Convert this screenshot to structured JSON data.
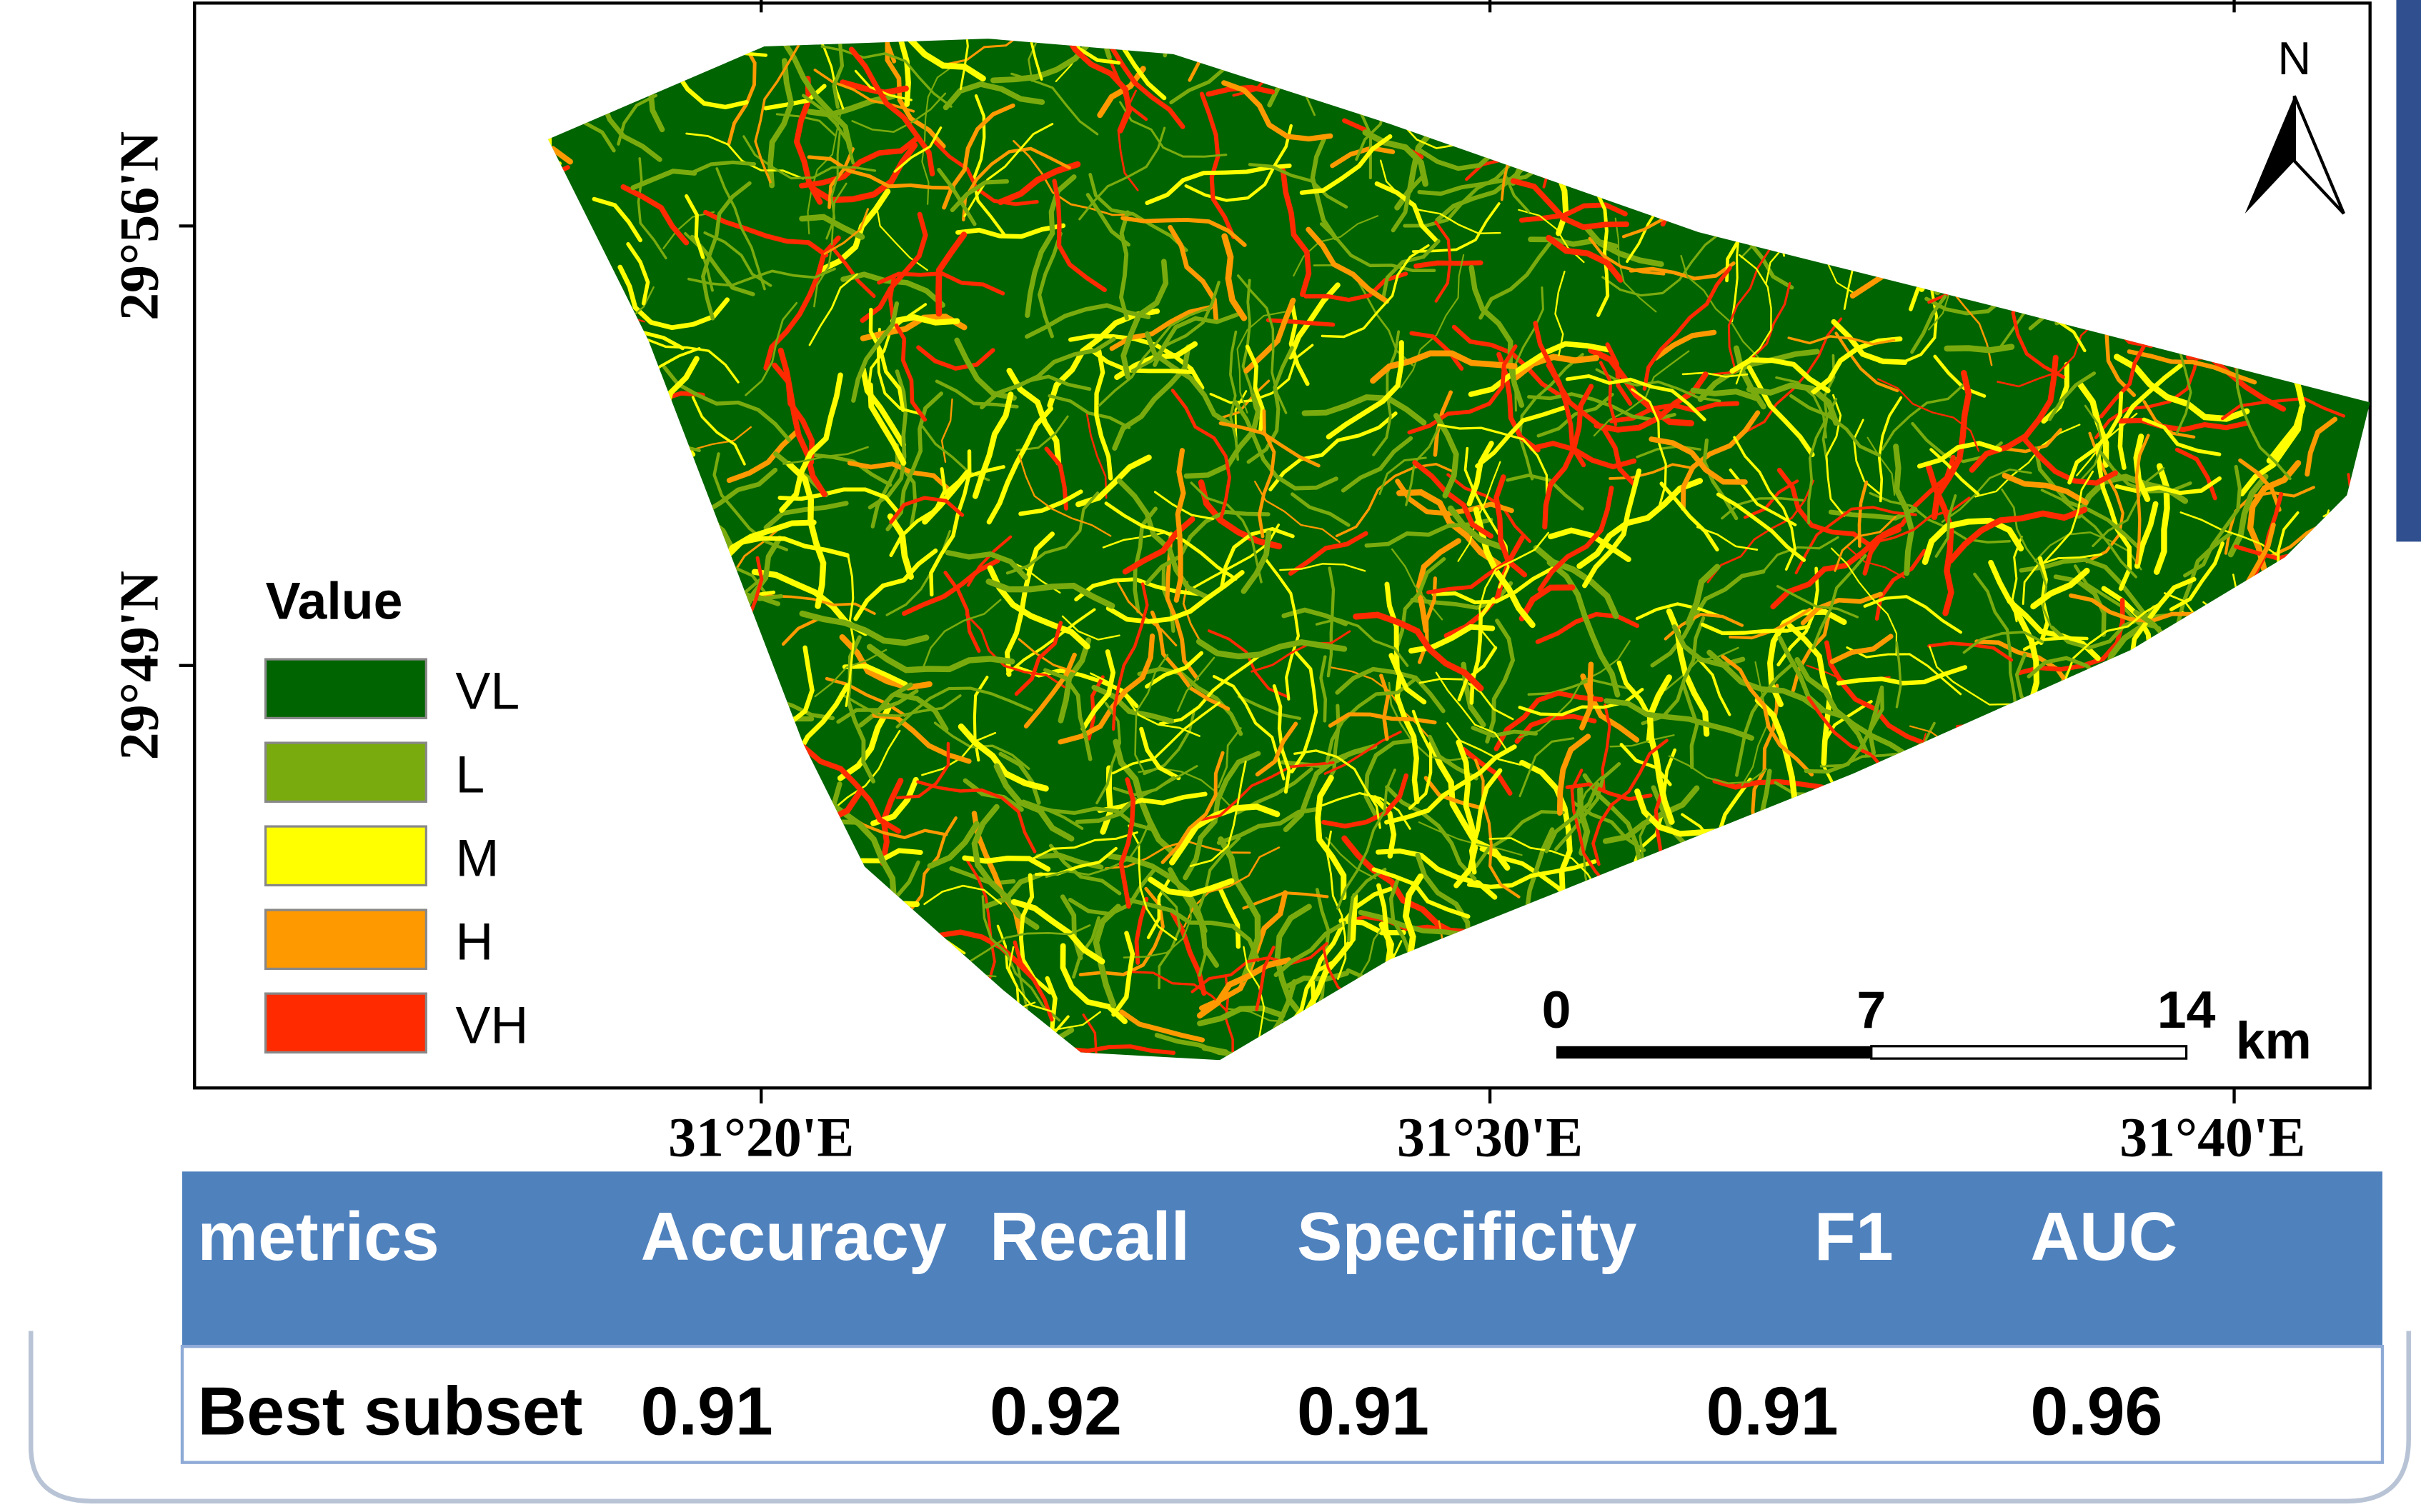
{
  "map": {
    "latitude_labels": [
      "29°56'N",
      "29°49'N"
    ],
    "longitude_labels": [
      "31°20'E",
      "31°30'E",
      "31°40'E"
    ],
    "north_label": "N",
    "legend": {
      "title": "Value",
      "items": [
        {
          "label": "VL",
          "color": "#006400"
        },
        {
          "label": "L",
          "color": "#7aab0e"
        },
        {
          "label": "M",
          "color": "#ffff00"
        },
        {
          "label": "H",
          "color": "#ff9900"
        },
        {
          "label": "VH",
          "color": "#ff2a00"
        }
      ]
    },
    "scale_bar": {
      "labels": [
        "0",
        "7",
        "14"
      ],
      "unit": "km"
    }
  },
  "table": {
    "header": [
      "metrics",
      "Accuracy",
      "Recall",
      "Specificity",
      "F1",
      "AUC"
    ],
    "rows": [
      [
        "Best subset",
        0.91,
        0.92,
        0.91,
        0.91,
        0.96
      ]
    ]
  }
}
